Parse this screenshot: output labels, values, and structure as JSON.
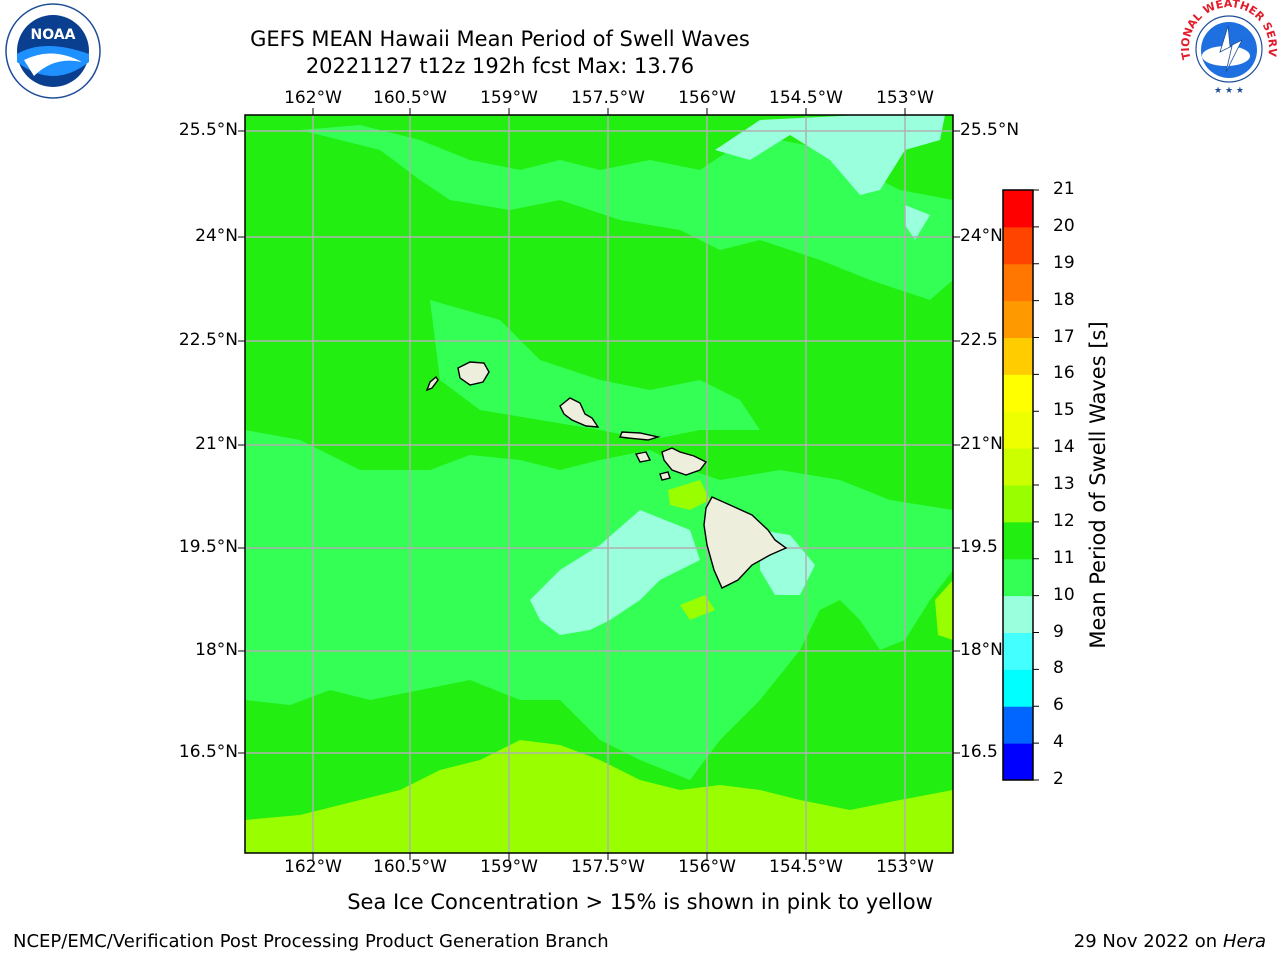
{
  "title": {
    "line1": "GEFS MEAN Hawaii Mean Period of Swell Waves",
    "line2": "20221127 t12z 192h fcst   Max: 13.76"
  },
  "map": {
    "lon_labels": [
      "162°W",
      "160.5°W",
      "159°W",
      "157.5°W",
      "156°W",
      "154.5°W",
      "153°W"
    ],
    "lat_labels": [
      "25.5°N",
      "24°N",
      "22.5°N",
      "21°N",
      "19.5°N",
      "18°N",
      "16.5°N"
    ],
    "lat_labels_right": [
      "25.5°N",
      "24°N",
      "22.5",
      "21°N",
      "19.5",
      "18°N",
      "16.5"
    ],
    "colors": {
      "ocean_main": "#33ff55",
      "ocean_dark": "#22ee11",
      "ocean_light": "#99ffdd",
      "ocean_yellow": "#99ff00",
      "land": "#eeeedd",
      "grid": "#b0b0b0"
    }
  },
  "colorbar": {
    "title": "Mean Period of Swell Waves [s]",
    "ticks": [
      "2",
      "4",
      "6",
      "8",
      "9",
      "10",
      "11",
      "12",
      "13",
      "14",
      "15",
      "16",
      "17",
      "18",
      "19",
      "20",
      "21"
    ],
    "colors": [
      "#0000ff",
      "#0066ff",
      "#00ffff",
      "#44ffff",
      "#99ffdd",
      "#33ff55",
      "#22ee11",
      "#99ff00",
      "#ccff00",
      "#eeff00",
      "#ffff00",
      "#ffcc00",
      "#ff9900",
      "#ff7700",
      "#ff4400",
      "#ff0000"
    ]
  },
  "footnote": "Sea Ice Concentration > 15% is shown in pink to yellow",
  "credit_left": "NCEP/EMC/Verification Post Processing Product Generation Branch",
  "credit_right_date": "29 Nov 2022 on",
  "credit_right_host": "Hera",
  "logos": {
    "left": "NOAA",
    "right": "NATIONAL WEATHER SERVICE"
  }
}
